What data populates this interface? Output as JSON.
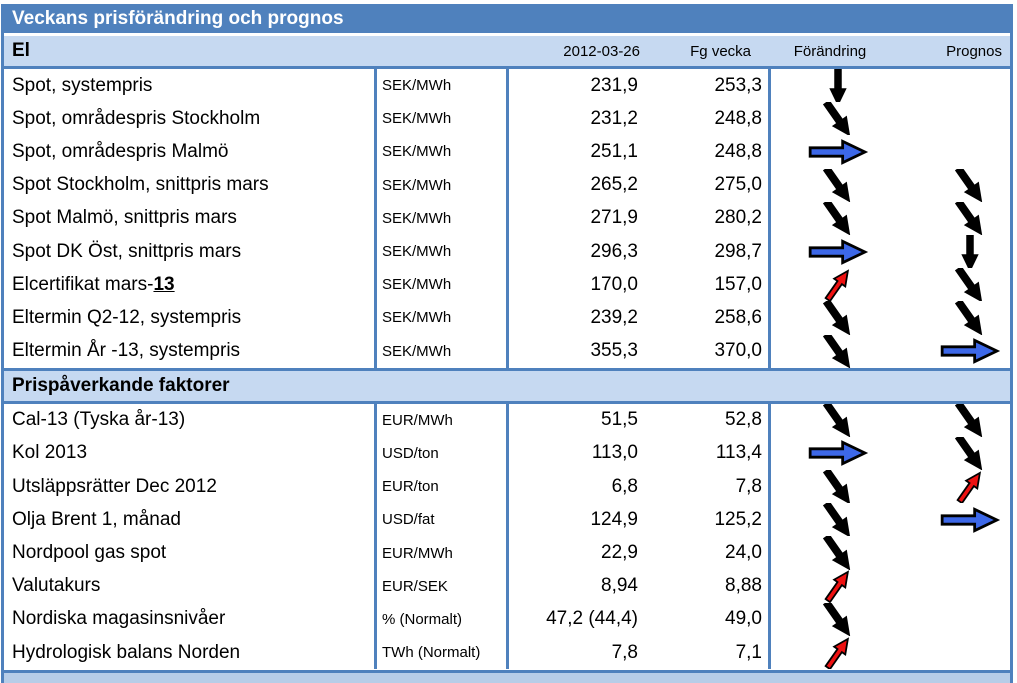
{
  "title": "Veckans prisförändring och prognos",
  "columns": {
    "date": "2012-03-26",
    "prev": "Fg vecka",
    "change": "Förändring",
    "forecast": "Prognos"
  },
  "colors": {
    "banner_bg": "#4F81BD",
    "section_bg": "#C6D9F1",
    "border": "#4F81BD",
    "bottom_strip": "#B7CDE8",
    "arrow_black": "#000000",
    "arrow_blue": "#3D68E8",
    "arrow_red": "#EE1111"
  },
  "sections": [
    {
      "name": "El",
      "rows": [
        {
          "label": "Spot, systempris",
          "unit": "SEK/MWh",
          "value": "231,9",
          "prev": "253,3",
          "change": "down",
          "forecast": ""
        },
        {
          "label": "Spot, områdespris Stockholm",
          "unit": "SEK/MWh",
          "value": "231,2",
          "prev": "248,8",
          "change": "down-diag",
          "forecast": ""
        },
        {
          "label": "Spot, områdespris Malmö",
          "unit": "SEK/MWh",
          "value": "251,1",
          "prev": "248,8",
          "change": "right",
          "forecast": ""
        },
        {
          "label": "Spot Stockholm, snittpris mars",
          "unit": "SEK/MWh",
          "value": "265,2",
          "prev": "275,0",
          "change": "down-diag",
          "forecast": "down-diag"
        },
        {
          "label": "Spot Malmö, snittpris mars",
          "unit": "SEK/MWh",
          "value": "271,9",
          "prev": "280,2",
          "change": "down-diag",
          "forecast": "down-diag"
        },
        {
          "label": "Spot DK Öst, snittpris mars",
          "unit": "SEK/MWh",
          "value": "296,3",
          "prev": "298,7",
          "change": "right",
          "forecast": "down"
        },
        {
          "label": "Elcertifikat mars-",
          "label_emphasis": "13",
          "unit": "SEK/MWh",
          "value": "170,0",
          "prev": "157,0",
          "change": "up-diag",
          "forecast": "down-diag"
        },
        {
          "label": "Eltermin Q2-12, systempris",
          "unit": "SEK/MWh",
          "value": "239,2",
          "prev": "258,6",
          "change": "down-diag",
          "forecast": "down-diag"
        },
        {
          "label": "Eltermin År -13, systempris",
          "unit": "SEK/MWh",
          "value": "355,3",
          "prev": "370,0",
          "change": "down-diag",
          "forecast": "right"
        }
      ]
    },
    {
      "name": "Prispåverkande faktorer",
      "rows": [
        {
          "label": "Cal-13 (Tyska år-13)",
          "unit": "EUR/MWh",
          "value": "51,5",
          "prev": "52,8",
          "change": "down-diag",
          "forecast": "down-diag"
        },
        {
          "label": "Kol 2013",
          "unit": "USD/ton",
          "value": "113,0",
          "prev": "113,4",
          "change": "right",
          "forecast": "down-diag"
        },
        {
          "label": "Utsläppsrätter Dec 2012",
          "unit": "EUR/ton",
          "value": "6,8",
          "prev": "7,8",
          "change": "down-diag",
          "forecast": "up-diag"
        },
        {
          "label": "Olja Brent 1, månad",
          "unit": "USD/fat",
          "value": "124,9",
          "prev": "125,2",
          "change": "down-diag",
          "forecast": "right"
        },
        {
          "label": "Nordpool gas spot",
          "unit": "EUR/MWh",
          "value": "22,9",
          "prev": "24,0",
          "change": "down-diag",
          "forecast": ""
        },
        {
          "label": "Valutakurs",
          "unit": "EUR/SEK",
          "value": "8,94",
          "prev": "8,88",
          "change": "up-diag",
          "forecast": ""
        },
        {
          "label": "Nordiska magasinsnivåer",
          "unit": "% (Normalt)",
          "value": "47,2 (44,4)",
          "prev": "49,0",
          "change": "down-diag",
          "forecast": ""
        },
        {
          "label": "Hydrologisk balans Norden",
          "unit": "TWh (Normalt)",
          "value": "7,8",
          "prev": "7,1",
          "change": "up-diag",
          "forecast": ""
        }
      ]
    }
  ]
}
